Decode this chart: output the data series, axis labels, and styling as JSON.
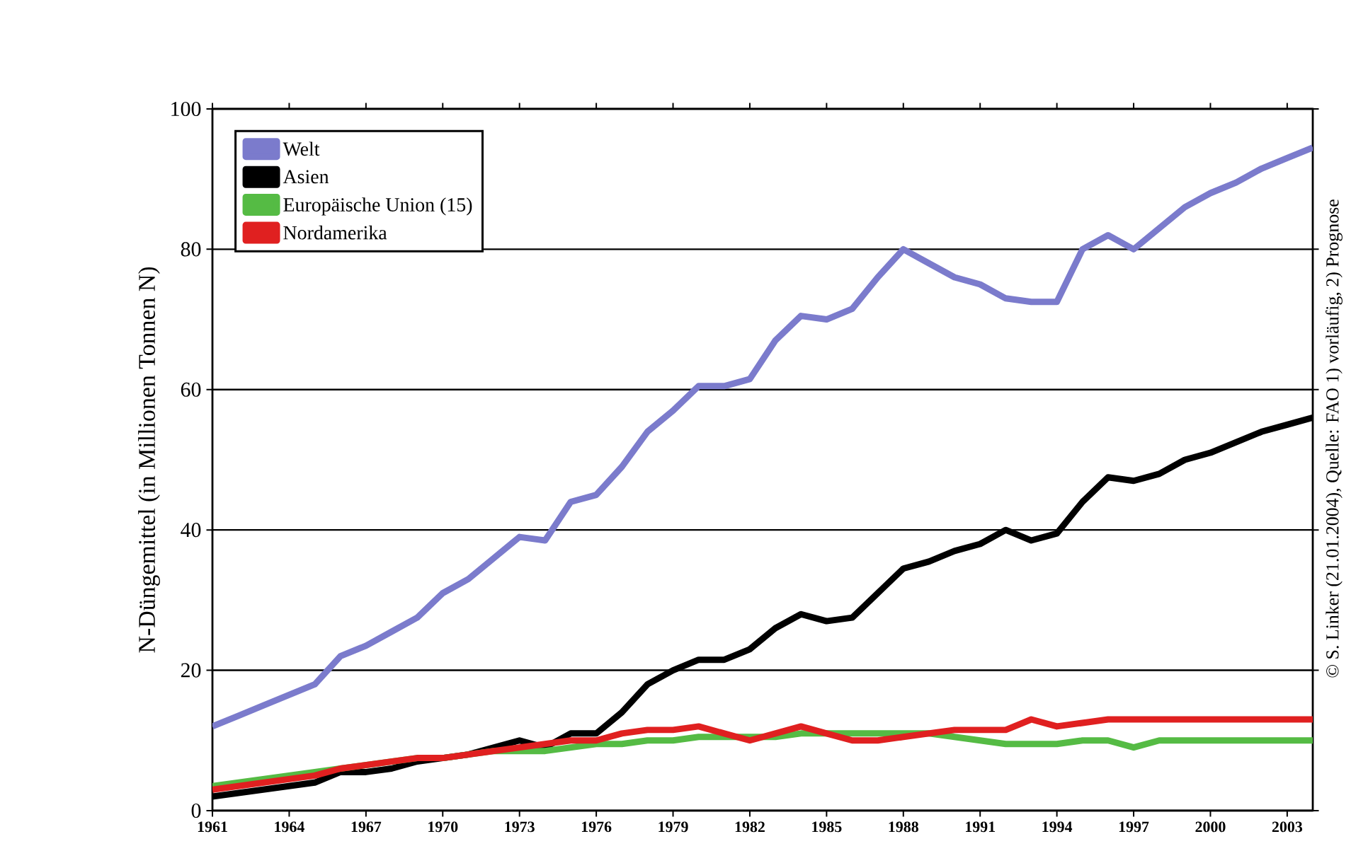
{
  "chart_data": {
    "type": "line",
    "ylabel": "N-Düngemittel (in Millionen Tonnen N)",
    "annotations": [
      "© S. Linker (21.01.2004), Quelle: FAO 1) vorläufig, 2) Prognose"
    ],
    "x": [
      1961,
      1962,
      1963,
      1964,
      1965,
      1966,
      1967,
      1968,
      1969,
      1970,
      1971,
      1972,
      1973,
      1974,
      1975,
      1976,
      1977,
      1978,
      1979,
      1980,
      1981,
      1982,
      1983,
      1984,
      1985,
      1986,
      1987,
      1988,
      1989,
      1990,
      1991,
      1992,
      1993,
      1994,
      1995,
      1996,
      1997,
      1998,
      1999,
      2000,
      2001,
      2002,
      2003,
      2004
    ],
    "series": [
      {
        "name": "Welt",
        "color": "#7b7bcc",
        "values": [
          12,
          13.5,
          15,
          16.5,
          18,
          22,
          23.5,
          25.5,
          27.5,
          31,
          33,
          36,
          39,
          38.5,
          44,
          45,
          49,
          54,
          57,
          60.5,
          60.5,
          61.5,
          67,
          70.5,
          70,
          71.5,
          76,
          80,
          78,
          76,
          75,
          73,
          72.5,
          72.5,
          80,
          82,
          80,
          83,
          86,
          88,
          89.5,
          91.5,
          93,
          94.5
        ]
      },
      {
        "name": "Asien",
        "color": "#000000",
        "values": [
          2,
          2.5,
          3,
          3.5,
          4,
          5.5,
          5.5,
          6,
          7,
          7.5,
          8,
          9,
          10,
          9,
          11,
          11,
          14,
          18,
          20,
          21.5,
          21.5,
          23,
          26,
          28,
          27,
          27.5,
          31,
          34.5,
          35.5,
          37,
          38,
          40,
          38.5,
          39.5,
          44,
          47.5,
          47,
          48,
          50,
          51,
          52.5,
          54,
          55,
          56
        ]
      },
      {
        "name": "Europäische Union (15)",
        "color": "#55bb44",
        "values": [
          3.5,
          4,
          4.5,
          5,
          5.5,
          6,
          6.5,
          7,
          7.5,
          7.5,
          8,
          8.5,
          8.5,
          8.5,
          9,
          9.5,
          9.5,
          10,
          10,
          10.5,
          10.5,
          10.5,
          10.5,
          11,
          11,
          11,
          11,
          11,
          11,
          10.5,
          10,
          9.5,
          9.5,
          9.5,
          10,
          10,
          9,
          10,
          10,
          10,
          10,
          10,
          10,
          10
        ]
      },
      {
        "name": "Nordamerika",
        "color": "#e02020",
        "values": [
          3,
          3.5,
          4,
          4.5,
          5,
          6,
          6.5,
          7,
          7.5,
          7.5,
          8,
          8.5,
          9,
          9.5,
          10,
          10,
          11,
          11.5,
          11.5,
          12,
          11,
          10,
          11,
          12,
          11,
          10,
          10,
          10.5,
          11,
          11.5,
          11.5,
          11.5,
          13,
          12,
          12.5,
          13,
          13,
          13,
          13,
          13,
          13,
          13,
          13,
          13
        ]
      }
    ],
    "xlim": [
      1961,
      2004
    ],
    "ylim": [
      0,
      100
    ],
    "xticks": [
      1961,
      1964,
      1967,
      1970,
      1973,
      1976,
      1979,
      1982,
      1985,
      1988,
      1991,
      1994,
      1997,
      2000,
      2003
    ],
    "yticks": [
      0,
      20,
      40,
      60,
      80,
      100
    ],
    "grid": "y",
    "legend": "top left",
    "line_style": "solid",
    "marker": "none"
  }
}
